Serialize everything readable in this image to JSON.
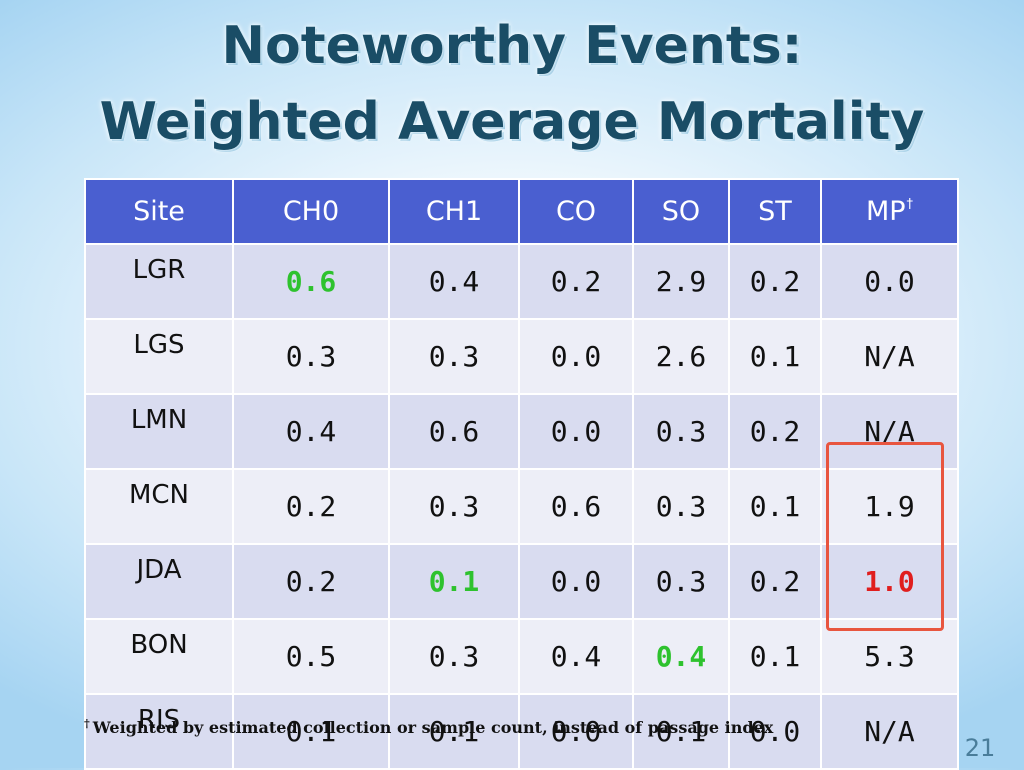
{
  "title": {
    "line1": "Noteworthy Events:",
    "line2": "Weighted Average Mortality"
  },
  "table": {
    "headers": [
      "Site",
      "CH0",
      "CH1",
      "CO",
      "SO",
      "ST",
      "MP"
    ],
    "header_footnote_mark": "†",
    "rows": [
      {
        "site": "LGR",
        "values": [
          "0.6",
          "0.4",
          "0.2",
          "2.9",
          "0.2",
          "0.0"
        ]
      },
      {
        "site": "LGS",
        "values": [
          "0.3",
          "0.3",
          "0.0",
          "2.6",
          "0.1",
          "N/A"
        ]
      },
      {
        "site": "LMN",
        "values": [
          "0.4",
          "0.6",
          "0.0",
          "0.3",
          "0.2",
          "N/A"
        ]
      },
      {
        "site": "MCN",
        "values": [
          "0.2",
          "0.3",
          "0.6",
          "0.3",
          "0.1",
          "1.9"
        ]
      },
      {
        "site": "JDA",
        "values": [
          "0.2",
          "0.1",
          "0.0",
          "0.3",
          "0.2",
          "1.0"
        ]
      },
      {
        "site": "BON",
        "values": [
          "0.5",
          "0.3",
          "0.4",
          "0.4",
          "0.1",
          "5.3"
        ]
      },
      {
        "site": "RIS",
        "values": [
          "0.1",
          "0.1",
          "0.0",
          "0.1",
          "0.0",
          "N/A"
        ]
      }
    ],
    "highlighted_green": [
      "LGR CH0",
      "JDA CH1",
      "BON SO"
    ],
    "highlighted_red": [
      "JDA MP"
    ]
  },
  "footnote": {
    "mark": "†",
    "text": "Weighted by estimated collection or sample count, instead of passage index"
  },
  "page_number": "21",
  "colors": {
    "header_bg": "#4a5fd0",
    "row_dark": "#d9dcf0",
    "row_light": "#edeef7",
    "green_value": "#2ec22e",
    "red_value": "#e01e1e",
    "highlight_box": "#e8553f",
    "title": "#1a4d66"
  }
}
